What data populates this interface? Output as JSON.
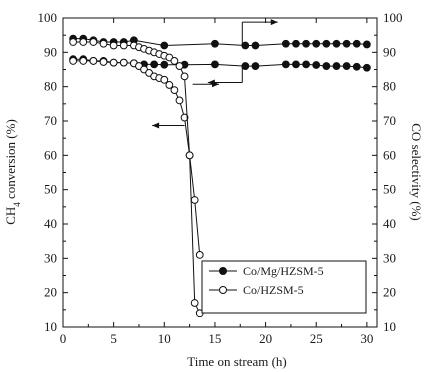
{
  "chart_data": {
    "type": "line",
    "xlabel": "Time on stream (h)",
    "ylabel_left_main": "CH",
    "ylabel_left_sub": "4",
    "ylabel_left_rest": " conversion (%)",
    "ylabel_right": "CO selectivity (%)",
    "xlim": [
      0,
      31
    ],
    "ylim": [
      10,
      100
    ],
    "y2lim": [
      10,
      100
    ],
    "x_ticks": [
      "0",
      "5",
      "10",
      "15",
      "20",
      "25",
      "30"
    ],
    "y_ticks": [
      "10",
      "20",
      "30",
      "40",
      "50",
      "60",
      "70",
      "80",
      "90",
      "100"
    ],
    "y2_ticks": [
      "10",
      "20",
      "30",
      "40",
      "50",
      "60",
      "70",
      "80",
      "90",
      "100"
    ],
    "legend_position": "bottom-right",
    "series": [
      {
        "name": "Co/Mg/HZSM-5",
        "marker": "filled-circle",
        "axis": "left",
        "x": [
          1,
          2,
          3,
          4,
          5,
          6,
          7,
          8,
          9,
          10,
          12,
          15,
          18,
          19,
          22,
          23,
          24,
          25,
          26,
          27,
          28,
          29,
          30
        ],
        "y": [
          88,
          88,
          87.5,
          87.5,
          87,
          87,
          86.8,
          86.5,
          86.5,
          86.4,
          86.4,
          86.5,
          86,
          86,
          86.5,
          86.5,
          86.5,
          86.3,
          86,
          86,
          86,
          85.8,
          85.5
        ]
      },
      {
        "name": "Co/Mg/HZSM-5",
        "marker": "filled-circle",
        "axis": "right",
        "x": [
          1,
          2,
          3,
          4,
          5,
          6,
          7,
          10,
          15,
          18,
          19,
          22,
          23,
          24,
          25,
          26,
          27,
          28,
          29,
          30
        ],
        "y": [
          94,
          94,
          93.5,
          93,
          93,
          93,
          93.5,
          92,
          92.5,
          92,
          92,
          92.5,
          92.5,
          92.5,
          92.5,
          92.5,
          92.5,
          92.5,
          92.5,
          92.3
        ]
      },
      {
        "name": "Co/HZSM-5",
        "marker": "open-circle",
        "axis": "left",
        "x": [
          1,
          2,
          3,
          4,
          5,
          6,
          7,
          7.5,
          8,
          8.5,
          9,
          9.5,
          10,
          10.5,
          11,
          11.5,
          12,
          12.5,
          13,
          13.5
        ],
        "y": [
          87.5,
          87.5,
          87.5,
          87.2,
          87,
          87,
          86.8,
          86,
          85,
          84,
          83,
          82.5,
          82,
          80.5,
          79,
          76,
          71,
          60,
          17,
          14
        ]
      },
      {
        "name": "Co/HZSM-5",
        "marker": "open-circle",
        "axis": "right",
        "x": [
          1,
          2,
          3,
          4,
          5,
          6,
          7,
          7.5,
          8,
          8.5,
          9,
          9.5,
          10,
          10.5,
          11,
          11.5,
          12,
          12.5,
          13,
          13.5
        ],
        "y": [
          93,
          93,
          93,
          92.5,
          92,
          92,
          92,
          91.5,
          91,
          90.5,
          90,
          89.5,
          89,
          88.5,
          87.5,
          86,
          83,
          60,
          47,
          31
        ]
      }
    ],
    "legend": [
      {
        "label": "Co/Mg/HZSM-5",
        "marker": "filled-circle"
      },
      {
        "label": "Co/HZSM-5",
        "marker": "open-circle"
      }
    ]
  }
}
